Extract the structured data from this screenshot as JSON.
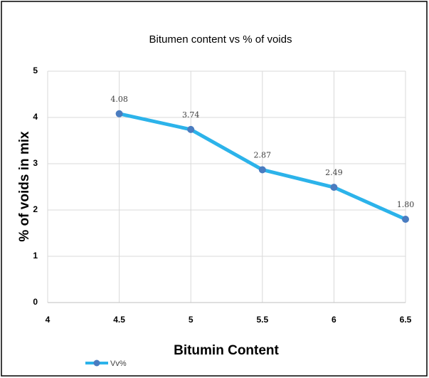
{
  "chart_data": {
    "type": "line",
    "title": "Bitumen content vs % of voids",
    "x_label": "Bitumin Content",
    "y_label": "% of voids in mix",
    "x": [
      4.5,
      5,
      5.5,
      6,
      6.5
    ],
    "series": [
      {
        "name": "Vv%",
        "color": "#2cb3ea",
        "marker_color": "#4a7cc0",
        "values": [
          4.08,
          3.74,
          2.87,
          2.49,
          1.8
        ],
        "value_labels": [
          "4.08",
          "3.74",
          "2.87",
          "2.49",
          "1.80"
        ]
      }
    ],
    "xlim": [
      4,
      6.5
    ],
    "xticks": [
      4,
      4.5,
      5,
      5.5,
      6,
      6.5
    ],
    "ylim": [
      0,
      5
    ],
    "yticks": [
      0,
      1,
      2,
      3,
      4,
      5
    ],
    "grid": true,
    "legend": "bottom-left"
  }
}
